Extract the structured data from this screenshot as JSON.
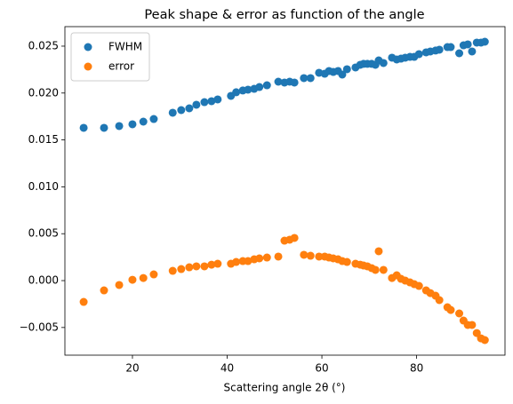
{
  "chart_data": {
    "type": "scatter",
    "title": "Peak shape & error as function of the angle",
    "xlabel": "Scattering angle 2θ (°)",
    "x": [
      9.7,
      14.0,
      17.2,
      20.0,
      22.3,
      24.5,
      28.5,
      30.3,
      32.0,
      33.5,
      35.2,
      36.7,
      38.0,
      40.8,
      41.9,
      43.3,
      44.4,
      45.7,
      46.8,
      48.4,
      50.8,
      52.1,
      53.2,
      54.2,
      56.2,
      57.6,
      59.4,
      60.6,
      61.5,
      62.4,
      63.4,
      64.3,
      65.3,
      67.1,
      68.1,
      68.8,
      69.6,
      70.5,
      71.3,
      72.0,
      73.0,
      74.8,
      75.8,
      76.7,
      77.6,
      78.6,
      79.5,
      80.5,
      82.0,
      82.9,
      84.0,
      84.8,
      86.5,
      87.2,
      89.0,
      89.9,
      90.8,
      91.7,
      92.7,
      93.6,
      94.4
    ],
    "series": [
      {
        "name": "FWHM",
        "color": "#1f77b4",
        "values": [
          0.01629,
          0.01629,
          0.01648,
          0.01667,
          0.01695,
          0.01723,
          0.0179,
          0.01818,
          0.01837,
          0.01875,
          0.01903,
          0.01913,
          0.01932,
          0.0197,
          0.02008,
          0.02027,
          0.02036,
          0.02045,
          0.02064,
          0.02083,
          0.02121,
          0.02112,
          0.02121,
          0.02112,
          0.02159,
          0.02159,
          0.02216,
          0.02206,
          0.02235,
          0.02225,
          0.02235,
          0.02197,
          0.02254,
          0.02273,
          0.02301,
          0.02311,
          0.02311,
          0.02311,
          0.02301,
          0.02348,
          0.0232,
          0.02377,
          0.02358,
          0.02367,
          0.02377,
          0.02386,
          0.02386,
          0.02415,
          0.02434,
          0.02443,
          0.02453,
          0.02462,
          0.0249,
          0.0249,
          0.02424,
          0.02509,
          0.02519,
          0.02443,
          0.02538,
          0.02538,
          0.02547
        ]
      },
      {
        "name": "error",
        "color": "#ff7f0e",
        "values": [
          -0.00227,
          -0.00104,
          -0.00047,
          9e-05,
          0.00028,
          0.00066,
          0.00104,
          0.00123,
          0.00142,
          0.00152,
          0.00152,
          0.0017,
          0.0018,
          0.0018,
          0.00199,
          0.00208,
          0.00208,
          0.00227,
          0.00237,
          0.00246,
          0.00256,
          0.00426,
          0.00436,
          0.00455,
          0.00275,
          0.00265,
          0.00256,
          0.00256,
          0.00246,
          0.00237,
          0.00227,
          0.00208,
          0.00199,
          0.0018,
          0.0017,
          0.00161,
          0.00152,
          0.00133,
          0.00114,
          0.00313,
          0.00114,
          0.00028,
          0.00057,
          0.00019,
          0,
          -0.00019,
          -0.00038,
          -0.00057,
          -0.00104,
          -0.00133,
          -0.00161,
          -0.00208,
          -0.00284,
          -0.00313,
          -0.0035,
          -0.00426,
          -0.00473,
          -0.00473,
          -0.00559,
          -0.00616,
          -0.00634
        ]
      }
    ],
    "xlim": [
      5.74,
      98.66
    ],
    "xticks": [
      20,
      40,
      60,
      80
    ],
    "ylim": [
      -0.00795,
      0.02708
    ],
    "yticks": [
      {
        "value": -0.005,
        "label": "−0.005"
      },
      {
        "value": 0,
        "label": "0.000"
      },
      0.005,
      {
        "value": 0.01,
        "label": "0.010"
      },
      0.015,
      {
        "value": 0.02,
        "label": "0.020"
      },
      0.025
    ],
    "legend": "upper left",
    "grid": false
  }
}
